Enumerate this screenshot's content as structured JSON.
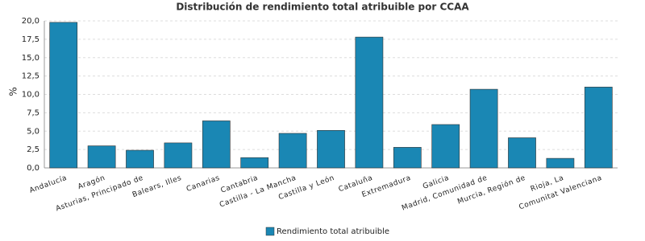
{
  "chart_data": {
    "type": "bar",
    "title": "Distribución de rendimiento total atribuible por CCAA",
    "y_label": "%",
    "categories": [
      "Andalucía",
      "Aragón",
      "Asturias, Principado de",
      "Balears, Illes",
      "Canarias",
      "Cantabria",
      "Castilla - La Mancha",
      "Castilla y León",
      "Cataluña",
      "Extremadura",
      "Galicia",
      "Madrid, Comunidad de",
      "Murcia, Región de",
      "Rioja, La",
      "Comunitat Valenciana"
    ],
    "series": [
      {
        "name": "Rendimiento total atribuible",
        "color": "#1a87b4",
        "values": [
          19.8,
          3.0,
          2.4,
          3.4,
          6.4,
          1.4,
          4.7,
          5.1,
          17.8,
          2.8,
          5.9,
          10.7,
          4.1,
          1.3,
          11.0
        ]
      }
    ],
    "ylim": [
      0,
      20
    ],
    "yticks": [
      {
        "value": 0,
        "label": "0,0"
      },
      {
        "value": 2.5,
        "label": "2,5"
      },
      {
        "value": 5,
        "label": "5,0"
      },
      {
        "value": 7.5,
        "label": "7,5"
      },
      {
        "value": 10,
        "label": "10,0"
      },
      {
        "value": 12.5,
        "label": "12,5"
      },
      {
        "value": 15,
        "label": "15,0"
      },
      {
        "value": 17.5,
        "label": "17,5"
      },
      {
        "value": 20,
        "label": "20,0"
      }
    ],
    "grid": true,
    "legend": "bottom"
  }
}
